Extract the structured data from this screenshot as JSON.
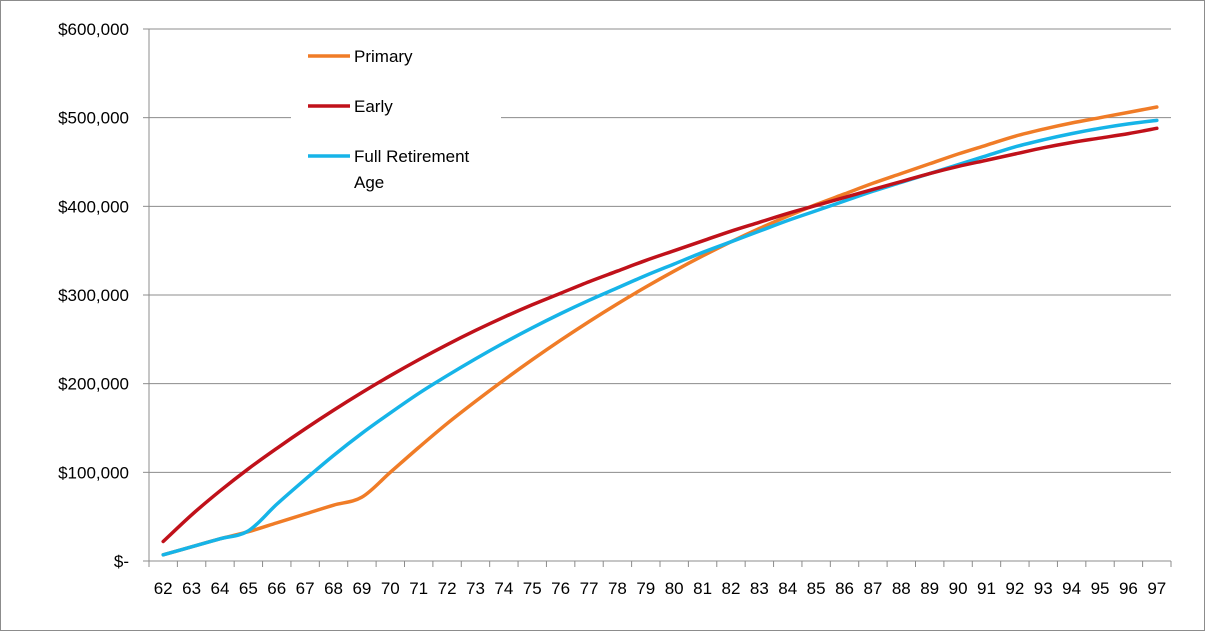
{
  "chart_data": {
    "type": "line",
    "title": "",
    "xlabel": "",
    "ylabel": "",
    "x": [
      62,
      63,
      64,
      65,
      66,
      67,
      68,
      69,
      70,
      71,
      72,
      73,
      74,
      75,
      76,
      77,
      78,
      79,
      80,
      81,
      82,
      83,
      84,
      85,
      86,
      87,
      88,
      89,
      90,
      91,
      92,
      93,
      94,
      95,
      96,
      97
    ],
    "x_tick_labels": [
      "62",
      "63",
      "64",
      "65",
      "66",
      "67",
      "68",
      "69",
      "70",
      "71",
      "72",
      "73",
      "74",
      "75",
      "76",
      "77",
      "78",
      "79",
      "80",
      "81",
      "82",
      "83",
      "84",
      "85",
      "86",
      "87",
      "88",
      "89",
      "90",
      "91",
      "92",
      "93",
      "94",
      "95",
      "96",
      "97"
    ],
    "ylim": [
      0,
      600000
    ],
    "y_ticks": [
      0,
      100000,
      200000,
      300000,
      400000,
      500000,
      600000
    ],
    "y_tick_labels": [
      "$-",
      "$100,000",
      "$200,000",
      "$300,000",
      "$400,000",
      "$500,000",
      "$600,000"
    ],
    "grid": "horizontal",
    "legend_position": "top-left",
    "series": [
      {
        "name": "Primary",
        "color": "#f07c27",
        "values": [
          7000,
          16000,
          25000,
          33000,
          43000,
          53000,
          63000,
          72000,
          100000,
          128000,
          155000,
          180000,
          204000,
          227000,
          249000,
          270000,
          290000,
          309000,
          327000,
          344000,
          360000,
          375000,
          389000,
          402000,
          414000,
          426000,
          437000,
          448000,
          459000,
          469000,
          479000,
          487000,
          494000,
          500000,
          506000,
          512000
        ]
      },
      {
        "name": "Early",
        "color": "#c0111a",
        "values": [
          22000,
          52000,
          79000,
          104000,
          127000,
          149000,
          170000,
          190000,
          209000,
          227000,
          244000,
          260000,
          275000,
          289000,
          302000,
          315000,
          327000,
          339000,
          350000,
          361000,
          372000,
          382000,
          392000,
          401000,
          410000,
          419000,
          428000,
          437000,
          445000,
          452000,
          459000,
          466000,
          472000,
          477000,
          482000,
          488000
        ]
      },
      {
        "name": "Full Retirement Age",
        "color": "#16b4e8",
        "values": [
          7000,
          16000,
          25000,
          34000,
          64000,
          92000,
          119000,
          144000,
          167000,
          189000,
          209000,
          228000,
          246000,
          263000,
          279000,
          294000,
          308000,
          322000,
          335000,
          348000,
          360000,
          372000,
          384000,
          395000,
          406000,
          417000,
          427000,
          437000,
          447000,
          457000,
          467000,
          475000,
          482000,
          488000,
          493000,
          497000
        ]
      }
    ]
  }
}
